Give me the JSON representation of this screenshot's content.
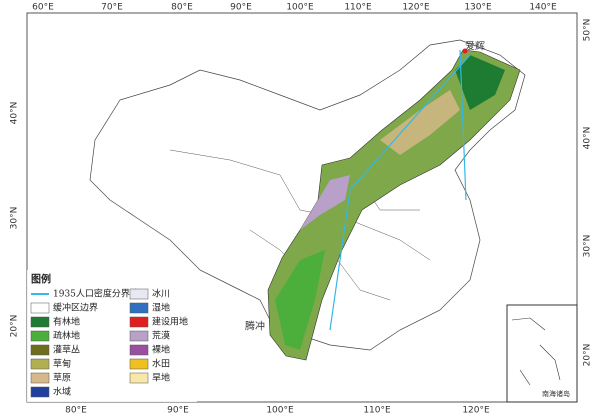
{
  "top_lon_labels": [
    "60°E",
    "70°E",
    "80°E",
    "90°E",
    "100°E",
    "110°E",
    "120°E",
    "130°E",
    "140°E"
  ],
  "bottom_lon_labels": [
    "80°E",
    "90°E",
    "100°E",
    "110°E",
    "120°E"
  ],
  "left_lat_labels": [
    "40°N",
    "30°N",
    "20°N"
  ],
  "right_lat_labels": [
    "50°N",
    "40°N",
    "30°N",
    "20°N"
  ],
  "places": [
    "爱辉",
    "腾冲"
  ],
  "inset_label": "南海诸岛",
  "legend": {
    "title": "图例",
    "items": [
      {
        "label": "1935人口密度分界线",
        "color": "#33b8e8",
        "kind": "line"
      },
      {
        "label": "缓冲区边界",
        "color": "#ffffff",
        "kind": "box"
      },
      {
        "label": "有林地",
        "color": "#1e7b32",
        "kind": "box"
      },
      {
        "label": "疏林地",
        "color": "#4caf3c",
        "kind": "box"
      },
      {
        "label": "灌草丛",
        "color": "#6e6e1e",
        "kind": "box"
      },
      {
        "label": "草甸",
        "color": "#b0b050",
        "kind": "box"
      },
      {
        "label": "草原",
        "color": "#d8b88a",
        "kind": "box"
      },
      {
        "label": "水域",
        "color": "#2040a0",
        "kind": "box"
      },
      {
        "label": "冰川",
        "color": "#e8e8f4",
        "kind": "box"
      },
      {
        "label": "湿地",
        "color": "#3070c0",
        "kind": "box"
      },
      {
        "label": "建设用地",
        "color": "#e02020",
        "kind": "box"
      },
      {
        "label": "荒漠",
        "color": "#b8a0c8",
        "kind": "box"
      },
      {
        "label": "裸地",
        "color": "#9a50a0",
        "kind": "box"
      },
      {
        "label": "水田",
        "color": "#f0c020",
        "kind": "box"
      },
      {
        "label": "旱地",
        "color": "#f8e8a8",
        "kind": "box"
      }
    ]
  }
}
